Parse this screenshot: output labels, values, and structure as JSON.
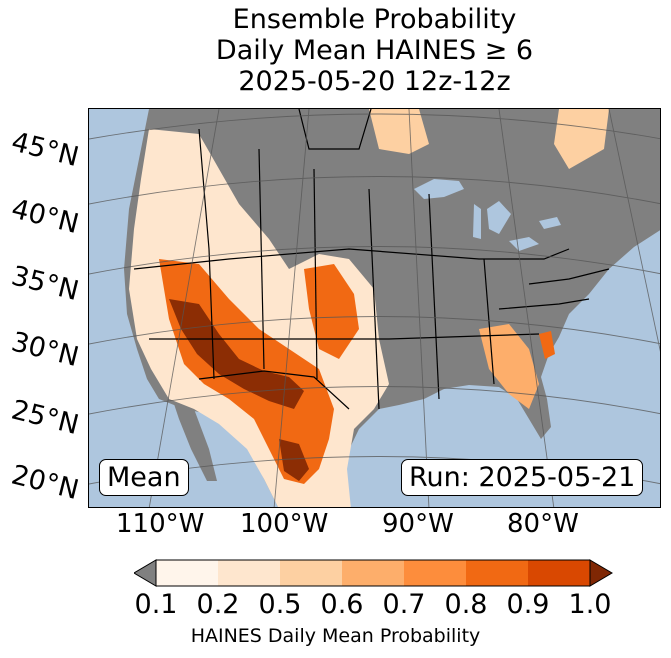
{
  "title": {
    "line1": "Ensemble Probability",
    "line2": "Daily Mean HAINES ≥ 6",
    "line3": "2025-05-20 12z-12z"
  },
  "map": {
    "latitude_labels": [
      "45°N",
      "40°N",
      "35°N",
      "30°N",
      "25°N",
      "20°N"
    ],
    "longitude_labels": [
      "110°W",
      "100°W",
      "90°W",
      "80°W"
    ],
    "mean_label": "Mean",
    "run_label": "Run: 2025-05-21",
    "colors": {
      "ocean": "#aec6de",
      "land": "#808080",
      "low_probability": "#fee6ce",
      "high_probability": "#8c2d04"
    }
  },
  "colorbar": {
    "title": "HAINES Daily Mean Probability",
    "ticks": [
      "0.1",
      "0.2",
      "0.5",
      "0.6",
      "0.7",
      "0.8",
      "0.9",
      "1.0"
    ],
    "colors": [
      "#fff5eb",
      "#fee6ce",
      "#fdd0a2",
      "#fdae6b",
      "#fd8d3c",
      "#f16913",
      "#d94801",
      "#a63603"
    ],
    "under_color": "#808080",
    "over_color": "#7f2704"
  }
}
